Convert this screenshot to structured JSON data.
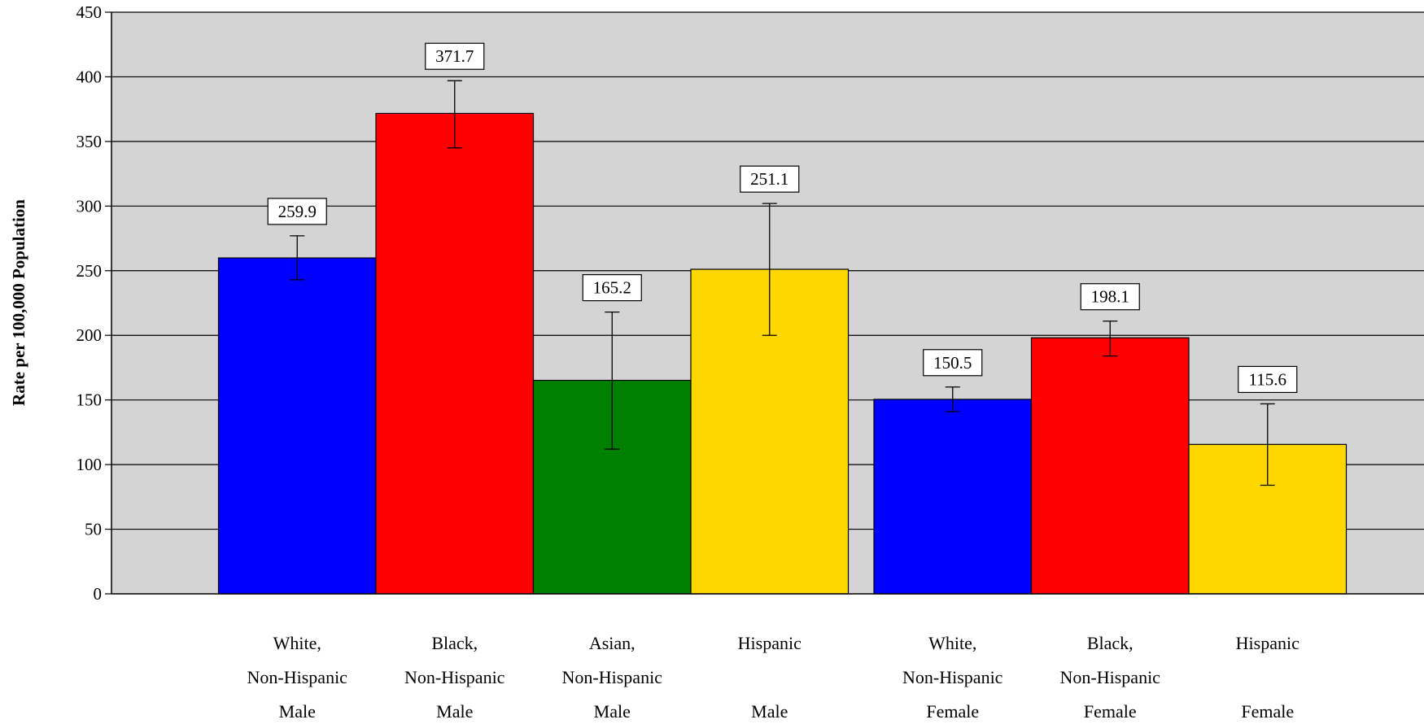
{
  "chart_data": {
    "type": "bar",
    "ylabel": "Rate per 100,000 Population",
    "ylim": [
      0,
      450
    ],
    "ytick_step": 50,
    "grid": true,
    "plot_background": "#d4d4d4",
    "categories": [
      [
        "White,",
        "Non-Hispanic",
        "Male"
      ],
      [
        "Black,",
        "Non-Hispanic",
        "Male"
      ],
      [
        "Asian,",
        "Non-Hispanic",
        "Male"
      ],
      [
        "Hispanic",
        "",
        "Male"
      ],
      [
        "White,",
        "Non-Hispanic",
        "Female"
      ],
      [
        "Black,",
        "Non-Hispanic",
        "Female"
      ],
      [
        "Hispanic",
        "",
        "Female"
      ]
    ],
    "groups": [
      {
        "name": "Male",
        "indices": [
          0,
          1,
          2,
          3
        ]
      },
      {
        "name": "Female",
        "indices": [
          4,
          5,
          6
        ]
      }
    ],
    "values": [
      259.9,
      371.7,
      165.2,
      251.1,
      150.5,
      198.1,
      115.6
    ],
    "value_labels": [
      "259.9",
      "371.7",
      "165.2",
      "251.1",
      "150.5",
      "198.1",
      "115.6"
    ],
    "error_low": [
      243,
      345,
      112,
      200,
      141,
      184,
      84
    ],
    "error_high": [
      277,
      397,
      218,
      302,
      160,
      211,
      147
    ],
    "colors": [
      "#0000ff",
      "#ff0000",
      "#008000",
      "#ffd700",
      "#0000ff",
      "#ff0000",
      "#ffd700"
    ]
  }
}
